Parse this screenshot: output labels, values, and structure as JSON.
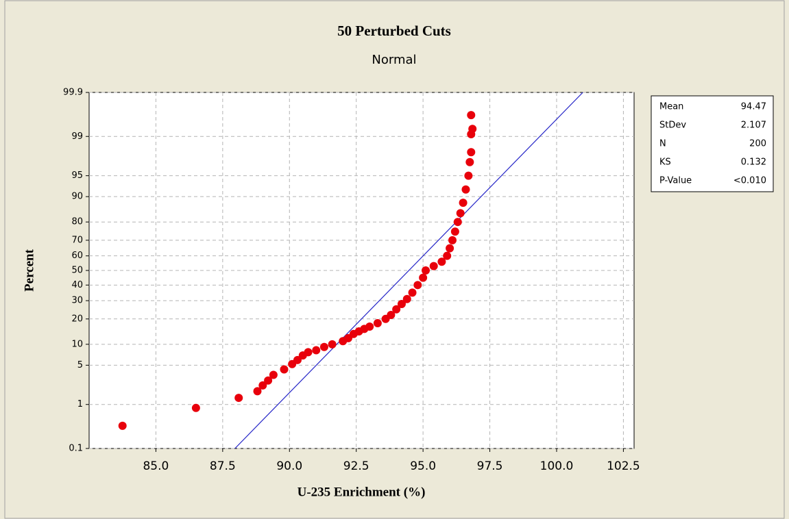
{
  "chart_data": {
    "type": "probability",
    "title": "50 Perturbed Cuts",
    "subtitle": "Normal",
    "x_label": "U-235 Enrichment (%)",
    "y_label": "Percent",
    "y_scale": "normal-probability",
    "grid": true,
    "color": "#e8000b",
    "line_color": "#2626c8",
    "xlim": [
      82.5,
      102.9
    ],
    "ylim": [
      0.1,
      99.9
    ],
    "xticks": [
      {
        "value": 85,
        "label": "85.0"
      },
      {
        "value": 87.5,
        "label": "87.5"
      },
      {
        "value": 90,
        "label": "90.0"
      },
      {
        "value": 92.5,
        "label": "92.5"
      },
      {
        "value": 95,
        "label": "95.0"
      },
      {
        "value": 97.5,
        "label": "97.5"
      },
      {
        "value": 100,
        "label": "100.0"
      },
      {
        "value": 102.5,
        "label": "102.5"
      }
    ],
    "yticks": [
      0.1,
      1,
      5,
      10,
      20,
      30,
      40,
      50,
      60,
      70,
      80,
      90,
      95,
      99,
      99.9
    ],
    "series": [
      {
        "x": [
          83.75,
          86.5,
          88.1,
          88.8,
          89.0,
          89.2,
          89.4,
          89.8,
          90.1,
          90.3,
          90.5,
          90.7,
          91.0,
          91.3,
          91.6,
          92.0,
          92.2,
          92.4,
          92.6,
          92.8,
          93.0,
          93.3,
          93.6,
          93.8,
          94.0,
          94.2,
          94.4,
          94.6,
          94.8,
          95.0,
          95.1,
          95.4,
          95.7,
          95.9,
          96.0,
          96.1,
          96.2,
          96.3,
          96.4,
          96.5,
          96.6,
          96.7,
          96.75,
          96.8,
          96.8,
          96.85,
          96.8
        ],
        "values": [
          0.35,
          0.85,
          1.35,
          1.8,
          2.3,
          2.8,
          3.5,
          4.3,
          5.2,
          6,
          7,
          7.8,
          8.3,
          9.2,
          10,
          11,
          12,
          13.5,
          14.5,
          15.5,
          16.5,
          18,
          20,
          22,
          25,
          28,
          31,
          35,
          40,
          45,
          50,
          53,
          56,
          60,
          65,
          70,
          75,
          80,
          84,
          88,
          92,
          95,
          97,
          98,
          99.1,
          99.3,
          99.65
        ]
      }
    ],
    "stats": [
      {
        "label": "Mean",
        "value": 94.47
      },
      {
        "label": "StDev",
        "value": 2.107
      },
      {
        "label": "N",
        "value": 200
      },
      {
        "label": "KS",
        "value": 0.132
      },
      {
        "label": "P-Value",
        "value": "<0.010"
      }
    ]
  }
}
